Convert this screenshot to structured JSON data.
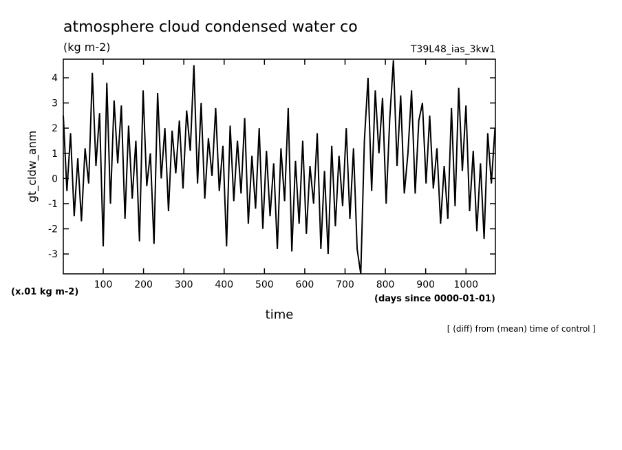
{
  "chart_data": {
    "type": "line",
    "title": "atmosphere cloud condensed water co",
    "units": "(kg m-2)",
    "experiment": "T39L48_ias_3kw1",
    "ylabel": "gt_cldw_anm",
    "yunits": "(x.01 kg m-2)",
    "xlabel": "time",
    "xunits": "(days since 0000-01-01)",
    "note": "[ (diff) from (mean) time of control ]",
    "color": "#000000",
    "xlim": [
      1,
      1073
    ],
    "ylim": [
      -3.79,
      4.74
    ],
    "xticks": [
      100,
      200,
      300,
      400,
      500,
      600,
      700,
      800,
      900,
      1000
    ],
    "yticks": [
      -3,
      -2,
      -1,
      0,
      1,
      2,
      3,
      4
    ],
    "x": [
      1,
      10,
      19,
      28,
      37,
      46,
      55,
      64,
      73,
      82,
      91,
      100,
      109,
      118,
      127,
      136,
      145,
      154,
      163,
      172,
      181,
      190,
      199,
      208,
      217,
      226,
      235,
      244,
      253,
      262,
      271,
      280,
      289,
      298,
      307,
      316,
      325,
      334,
      343,
      352,
      361,
      370,
      379,
      388,
      397,
      406,
      415,
      424,
      433,
      442,
      451,
      460,
      469,
      478,
      487,
      496,
      505,
      514,
      523,
      532,
      541,
      550,
      559,
      568,
      577,
      586,
      595,
      604,
      613,
      622,
      631,
      640,
      649,
      658,
      667,
      676,
      685,
      694,
      703,
      712,
      721,
      730,
      739,
      748,
      757,
      766,
      775,
      784,
      793,
      802,
      811,
      820,
      829,
      838,
      847,
      856,
      865,
      874,
      883,
      892,
      901,
      910,
      919,
      928,
      937,
      946,
      955,
      964,
      973,
      982,
      991,
      1000,
      1009,
      1018,
      1027,
      1036,
      1045,
      1054,
      1063,
      1072
    ],
    "series": [
      {
        "name": "gt_cldw_anm",
        "color": "#000000",
        "values": [
          2.5,
          -0.5,
          1.8,
          -1.5,
          0.8,
          -1.7,
          1.2,
          -0.2,
          4.2,
          0.5,
          2.6,
          -2.7,
          3.8,
          -1.0,
          3.1,
          0.6,
          2.9,
          -1.6,
          2.1,
          -0.8,
          1.5,
          -2.5,
          3.5,
          -0.3,
          1.0,
          -2.6,
          3.4,
          0.0,
          2.0,
          -1.3,
          1.9,
          0.2,
          2.3,
          -0.4,
          2.7,
          1.1,
          4.5,
          -0.2,
          3.0,
          -0.8,
          1.6,
          0.1,
          2.8,
          -0.5,
          1.3,
          -2.7,
          2.1,
          -0.9,
          1.5,
          -0.6,
          2.4,
          -1.8,
          0.9,
          -1.2,
          2.0,
          -2.0,
          1.1,
          -1.5,
          0.6,
          -2.8,
          1.2,
          -0.9,
          2.8,
          -2.9,
          0.7,
          -1.8,
          1.5,
          -2.2,
          0.5,
          -1.0,
          1.8,
          -2.8,
          0.3,
          -3.0,
          1.3,
          -1.9,
          0.9,
          -1.1,
          2.0,
          -1.6,
          1.2,
          -2.8,
          -3.8,
          1.5,
          4.0,
          -0.5,
          3.5,
          1.0,
          3.2,
          -1.0,
          2.4,
          4.7,
          0.5,
          3.3,
          -0.6,
          1.0,
          3.5,
          -0.6,
          2.3,
          3.0,
          -0.2,
          2.5,
          -0.4,
          1.2,
          -1.8,
          0.5,
          -1.6,
          2.8,
          -1.1,
          3.6,
          0.3,
          2.9,
          -1.3,
          1.1,
          -2.1,
          0.6,
          -2.4,
          1.8,
          -0.2,
          2.0
        ]
      }
    ]
  }
}
